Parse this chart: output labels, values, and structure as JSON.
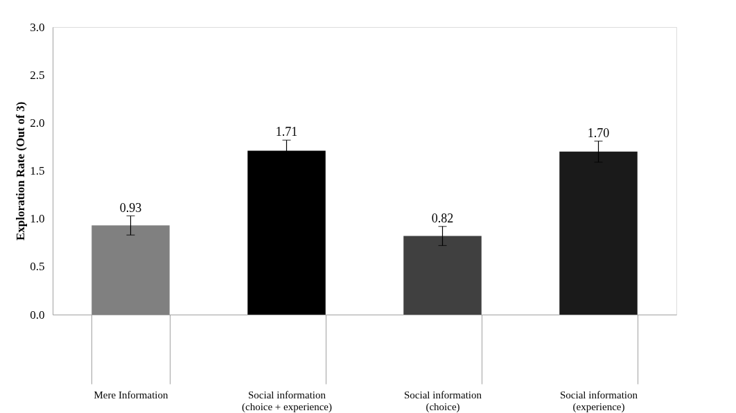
{
  "chart_data": {
    "type": "bar",
    "ylabel": "Exploration Rate (Out of 3)",
    "categories": [
      "Mere Information",
      "Social information\n(choice + experience)",
      "Social information\n(choice)",
      "Social information\n(experience)"
    ],
    "values": [
      0.93,
      1.71,
      0.82,
      1.7
    ],
    "errors": [
      0.1,
      0.11,
      0.1,
      0.11
    ],
    "colors": [
      "#808080",
      "#000000",
      "#404040",
      "#1a1a1a"
    ],
    "value_labels": [
      "0.93",
      "1.71",
      "0.82",
      "1.70"
    ],
    "ylim": [
      0,
      3
    ],
    "yticks": [
      {
        "value": 0,
        "label": "0.0"
      },
      {
        "value": 0.5,
        "label": "0.5"
      },
      {
        "value": 1,
        "label": "1.0"
      },
      {
        "value": 1.5,
        "label": "1.5"
      },
      {
        "value": 2,
        "label": "2.0"
      },
      {
        "value": 2.5,
        "label": "2.5"
      },
      {
        "value": 3,
        "label": "3.0"
      }
    ],
    "grid": false,
    "legend": false
  }
}
